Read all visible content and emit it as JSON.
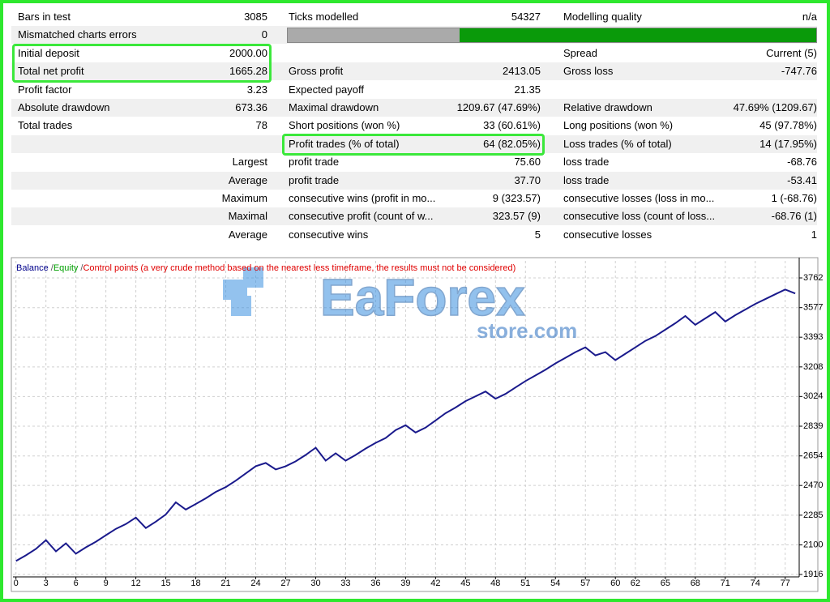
{
  "report": {
    "rows": [
      [
        "Bars in test",
        "3085",
        "Ticks modelled",
        "54327",
        "Modelling quality",
        "n/a"
      ],
      [
        "Mismatched charts errors",
        "0",
        null,
        null,
        null,
        null
      ],
      [
        "Initial deposit",
        "2000.00",
        null,
        null,
        "Spread",
        "Current (5)"
      ],
      [
        "Total net profit",
        "1665.28",
        "Gross profit",
        "2413.05",
        "Gross loss",
        "-747.76"
      ],
      [
        "Profit factor",
        "3.23",
        "Expected payoff",
        "21.35",
        null,
        null
      ],
      [
        "Absolute drawdown",
        "673.36",
        "Maximal drawdown",
        "1209.67 (47.69%)",
        "Relative drawdown",
        "47.69% (1209.67)"
      ],
      [
        "Total trades",
        "78",
        "Short positions (won %)",
        "33 (60.61%)",
        "Long positions (won %)",
        "45 (97.78%)"
      ],
      [
        null,
        null,
        "Profit trades (% of total)",
        "64 (82.05%)",
        "Loss trades (% of total)",
        "14 (17.95%)"
      ],
      [
        null,
        "Largest",
        "profit trade",
        "75.60",
        "loss trade",
        "-68.76"
      ],
      [
        null,
        "Average",
        "profit trade",
        "37.70",
        "loss trade",
        "-53.41"
      ],
      [
        null,
        "Maximum",
        "consecutive wins (profit in mo...",
        "9 (323.57)",
        "consecutive losses (loss in mo...",
        "1 (-68.76)"
      ],
      [
        null,
        "Maximal",
        "consecutive profit (count of w...",
        "323.57 (9)",
        "consecutive loss (count of loss...",
        "-68.76 (1)"
      ],
      [
        null,
        "Average",
        "consecutive wins",
        "5",
        "consecutive losses",
        "1"
      ]
    ]
  },
  "watermark": {
    "brand": "EaForex",
    "domain": "store.com"
  },
  "chart_data": {
    "type": "line",
    "legend": [
      {
        "text": "Balance",
        "color": "#00008b"
      },
      {
        "text": "Equity",
        "color": "#00a000"
      },
      {
        "text": "Control points (a very crude method based on the nearest less timeframe, the results must not be considered)",
        "color": "#e00000"
      }
    ],
    "legend_separator": "/",
    "series": [
      {
        "name": "Balance",
        "color": "#1a1a8c",
        "values": [
          2000,
          2035,
          2075,
          2130,
          2060,
          2110,
          2045,
          2085,
          2120,
          2160,
          2200,
          2230,
          2270,
          2205,
          2245,
          2290,
          2365,
          2320,
          2355,
          2390,
          2430,
          2460,
          2500,
          2545,
          2590,
          2610,
          2570,
          2590,
          2620,
          2660,
          2705,
          2625,
          2670,
          2625,
          2660,
          2700,
          2735,
          2765,
          2815,
          2845,
          2800,
          2830,
          2875,
          2920,
          2955,
          2995,
          3025,
          3055,
          3010,
          3040,
          3080,
          3120,
          3155,
          3190,
          3230,
          3265,
          3300,
          3330,
          3280,
          3300,
          3250,
          3290,
          3330,
          3370,
          3400,
          3440,
          3480,
          3525,
          3470,
          3510,
          3550,
          3490,
          3530,
          3565,
          3600,
          3630,
          3660,
          3690,
          3665
        ]
      }
    ],
    "xlim": [
      -0.3,
      78.4
    ],
    "xticks": [
      0,
      3,
      6,
      9,
      12,
      15,
      18,
      21,
      24,
      27,
      30,
      33,
      36,
      39,
      42,
      45,
      48,
      51,
      54,
      57,
      60,
      62,
      65,
      68,
      71,
      74,
      77
    ],
    "ylim": [
      1901,
      3868
    ],
    "yticks": [
      1916,
      2100,
      2285,
      2470,
      2654,
      2839,
      3024,
      3208,
      3393,
      3577,
      3762
    ],
    "grid": true
  }
}
